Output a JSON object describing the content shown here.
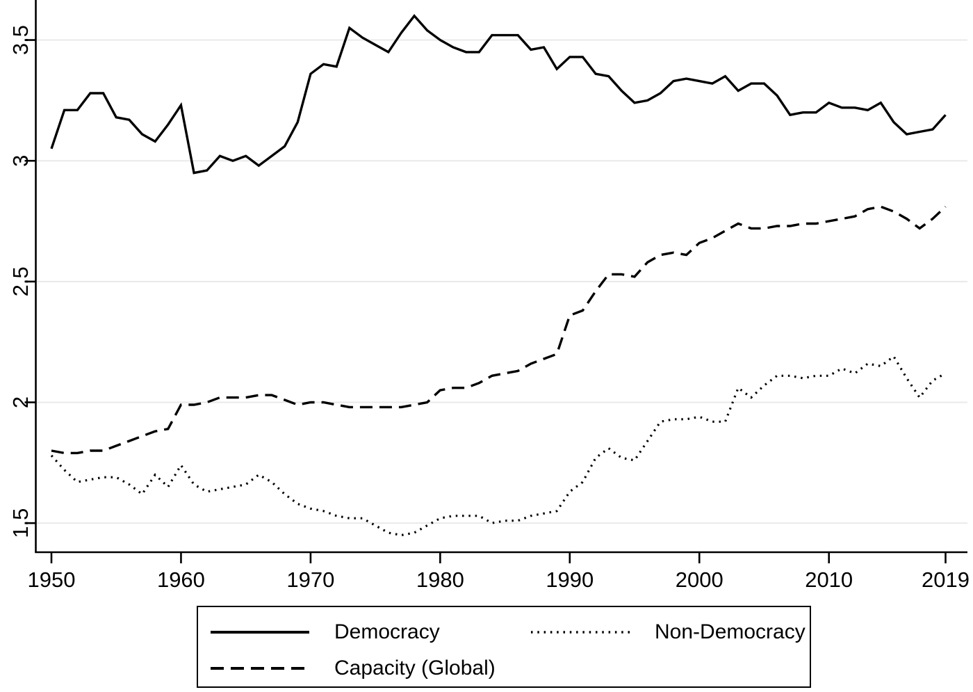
{
  "chart_data": {
    "type": "line",
    "title": "",
    "xlabel": "",
    "ylabel": "",
    "grid": "horizontal-gridlines",
    "legend_position": "bottom-boxed-two-columns",
    "x_axis": {
      "range": [
        1950,
        2019
      ],
      "ticks": [
        1950,
        1960,
        1970,
        1980,
        1990,
        2000,
        2010,
        2019
      ],
      "tick_labels": [
        "1950",
        "1960",
        "1970",
        "1980",
        "1990",
        "2000",
        "2010",
        "2019"
      ]
    },
    "y_axis": {
      "ticks": [
        1.5,
        2,
        2.5,
        3,
        3.5
      ],
      "tick_labels": [
        "1.5",
        "2",
        "2.5",
        "3",
        "3.5"
      ],
      "label_rotation_deg": -90
    },
    "years": [
      1950,
      1951,
      1952,
      1953,
      1954,
      1955,
      1956,
      1957,
      1958,
      1959,
      1960,
      1961,
      1962,
      1963,
      1964,
      1965,
      1966,
      1967,
      1968,
      1969,
      1970,
      1971,
      1972,
      1973,
      1974,
      1975,
      1976,
      1977,
      1978,
      1979,
      1980,
      1981,
      1982,
      1983,
      1984,
      1985,
      1986,
      1987,
      1988,
      1989,
      1990,
      1991,
      1992,
      1993,
      1994,
      1995,
      1996,
      1997,
      1998,
      1999,
      2000,
      2001,
      2002,
      2003,
      2004,
      2005,
      2006,
      2007,
      2008,
      2009,
      2010,
      2011,
      2012,
      2013,
      2014,
      2015,
      2016,
      2017,
      2018,
      2019
    ],
    "series": [
      {
        "name": "Democracy",
        "line_style": "solid",
        "color": "#000000",
        "values": [
          3.05,
          3.21,
          3.21,
          3.28,
          3.28,
          3.18,
          3.17,
          3.11,
          3.08,
          3.15,
          3.23,
          2.95,
          2.96,
          3.02,
          3.0,
          3.02,
          2.98,
          3.02,
          3.06,
          3.16,
          3.36,
          3.4,
          3.39,
          3.55,
          3.51,
          3.48,
          3.45,
          3.53,
          3.6,
          3.54,
          3.5,
          3.47,
          3.45,
          3.45,
          3.52,
          3.52,
          3.52,
          3.46,
          3.47,
          3.38,
          3.43,
          3.43,
          3.36,
          3.35,
          3.29,
          3.24,
          3.25,
          3.28,
          3.33,
          3.34,
          3.33,
          3.32,
          3.35,
          3.29,
          3.32,
          3.32,
          3.27,
          3.19,
          3.2,
          3.2,
          3.24,
          3.22,
          3.22,
          3.21,
          3.24,
          3.16,
          3.11,
          3.12,
          3.13,
          3.19
        ]
      },
      {
        "name": "Non-Democracy",
        "line_style": "dotted",
        "color": "#000000",
        "values": [
          1.78,
          1.72,
          1.67,
          1.68,
          1.69,
          1.69,
          1.66,
          1.62,
          1.7,
          1.65,
          1.74,
          1.66,
          1.63,
          1.64,
          1.65,
          1.66,
          1.7,
          1.67,
          1.62,
          1.58,
          1.56,
          1.55,
          1.53,
          1.52,
          1.52,
          1.49,
          1.46,
          1.45,
          1.46,
          1.49,
          1.52,
          1.53,
          1.53,
          1.53,
          1.5,
          1.51,
          1.51,
          1.53,
          1.54,
          1.55,
          1.63,
          1.67,
          1.77,
          1.81,
          1.77,
          1.76,
          1.84,
          1.92,
          1.93,
          1.93,
          1.94,
          1.92,
          1.92,
          2.06,
          2.02,
          2.07,
          2.11,
          2.11,
          2.1,
          2.11,
          2.11,
          2.14,
          2.12,
          2.16,
          2.15,
          2.19,
          2.1,
          2.02,
          2.09,
          2.12
        ]
      },
      {
        "name": "Capacity (Global)",
        "line_style": "dashed",
        "color": "#000000",
        "values": [
          1.8,
          1.79,
          1.79,
          1.8,
          1.8,
          1.82,
          1.84,
          1.86,
          1.88,
          1.89,
          1.99,
          1.99,
          2.0,
          2.02,
          2.02,
          2.02,
          2.03,
          2.03,
          2.01,
          1.99,
          2.0,
          2.0,
          1.99,
          1.98,
          1.98,
          1.98,
          1.98,
          1.98,
          1.99,
          2.0,
          2.05,
          2.06,
          2.06,
          2.08,
          2.11,
          2.12,
          2.13,
          2.16,
          2.18,
          2.2,
          2.36,
          2.38,
          2.46,
          2.53,
          2.53,
          2.52,
          2.58,
          2.61,
          2.62,
          2.61,
          2.66,
          2.68,
          2.71,
          2.74,
          2.72,
          2.72,
          2.73,
          2.73,
          2.74,
          2.74,
          2.75,
          2.76,
          2.77,
          2.8,
          2.81,
          2.79,
          2.76,
          2.72,
          2.76,
          2.81
        ]
      }
    ]
  },
  "colors": {
    "line": "#000000",
    "axis": "#000000",
    "gridline": "#e9e9e9",
    "background": "#ffffff"
  }
}
